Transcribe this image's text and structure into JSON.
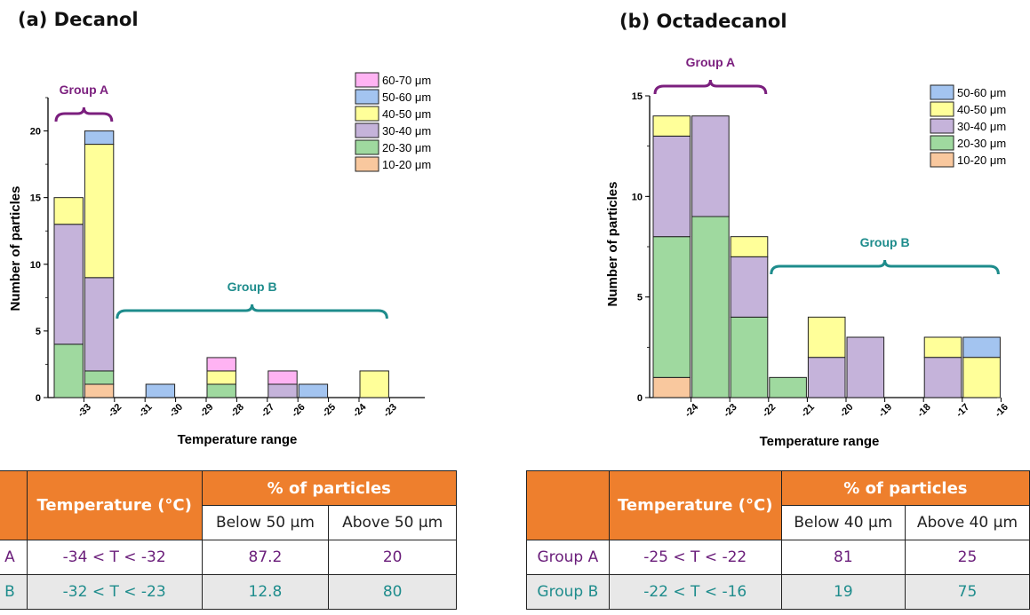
{
  "chart_data": [
    {
      "type": "bar",
      "stacked": true,
      "title": "(a) Decanol",
      "xlabel": "Temperature range",
      "ylabel": "Number of particles",
      "ylim": [
        0,
        22.5
      ],
      "yticks": [
        0,
        5,
        10,
        15,
        20
      ],
      "x_tick_labels": [
        "-33",
        "-32",
        "-31",
        "-30",
        "-29",
        "-28",
        "-27",
        "-26",
        "-25",
        "-24",
        "-23"
      ],
      "categories": [
        "-34 to -33",
        "-33 to -32",
        "-32 to -31",
        "-31 to -30",
        "-30 to -29",
        "-29 to -28",
        "-28 to -27",
        "-27 to -26",
        "-26 to -25",
        "-25 to -24",
        "-24 to -23"
      ],
      "series": [
        {
          "name": "10-20 μm",
          "color": "#f9c89e",
          "values": [
            0,
            1,
            0,
            0,
            0,
            0,
            0,
            0,
            0,
            0,
            0
          ]
        },
        {
          "name": "20-30 μm",
          "color": "#9fd99f",
          "values": [
            4,
            1,
            0,
            0,
            0,
            1,
            0,
            0,
            0,
            0,
            0
          ]
        },
        {
          "name": "30-40 μm",
          "color": "#c5b3da",
          "values": [
            9,
            7,
            0,
            0,
            0,
            0,
            0,
            1,
            0,
            0,
            0
          ]
        },
        {
          "name": "40-50 μm",
          "color": "#ffff99",
          "values": [
            2,
            10,
            0,
            0,
            0,
            1,
            0,
            0,
            0,
            0,
            2
          ]
        },
        {
          "name": "50-60 μm",
          "color": "#a3c4f0",
          "values": [
            0,
            1,
            0,
            1,
            0,
            0,
            0,
            0,
            1,
            0,
            0
          ]
        },
        {
          "name": "60-70 μm",
          "color": "#ffb3f3",
          "values": [
            0,
            0,
            0,
            0,
            0,
            1,
            0,
            1,
            0,
            0,
            0
          ]
        }
      ],
      "legend_position": "top-right",
      "annotations": [
        {
          "text": "Group A",
          "color": "#7b1f7e",
          "from_category": 0,
          "to_category": 1
        },
        {
          "text": "Group B",
          "color": "#1e8c8c",
          "from_category": 2,
          "to_category": 10
        }
      ]
    },
    {
      "type": "bar",
      "stacked": true,
      "title": "(b) Octadecanol",
      "xlabel": "Temperature range",
      "ylabel": "Number of particles",
      "ylim": [
        0,
        15
      ],
      "yticks": [
        0,
        5,
        10,
        15
      ],
      "x_tick_labels": [
        "-24",
        "-23",
        "-22",
        "-21",
        "-20",
        "-19",
        "-18",
        "-17",
        "-16"
      ],
      "categories": [
        "-25 to -24",
        "-24 to -23",
        "-23 to -22",
        "-22 to -21",
        "-21 to -20",
        "-20 to -19",
        "-19 to -18",
        "-18 to -17",
        "-17 to -16"
      ],
      "series": [
        {
          "name": "10-20 μm",
          "color": "#f9c89e",
          "values": [
            1,
            0,
            0,
            0,
            0,
            0,
            0,
            0,
            0
          ]
        },
        {
          "name": "20-30 μm",
          "color": "#9fd99f",
          "values": [
            7,
            9,
            4,
            1,
            0,
            0,
            0,
            0,
            0
          ]
        },
        {
          "name": "30-40 μm",
          "color": "#c5b3da",
          "values": [
            5,
            5,
            3,
            0,
            2,
            3,
            0,
            2,
            0
          ]
        },
        {
          "name": "40-50 μm",
          "color": "#ffff99",
          "values": [
            1,
            0,
            1,
            0,
            2,
            0,
            0,
            1,
            2
          ]
        },
        {
          "name": "50-60 μm",
          "color": "#a3c4f0",
          "values": [
            0,
            0,
            0,
            0,
            0,
            0,
            0,
            0,
            1
          ]
        }
      ],
      "legend_position": "top-right",
      "annotations": [
        {
          "text": "Group A",
          "color": "#7b1f7e",
          "from_category": 0,
          "to_category": 2
        },
        {
          "text": "Group B",
          "color": "#1e8c8c",
          "from_category": 3,
          "to_category": 8
        }
      ]
    }
  ],
  "tables": [
    {
      "header_temperature": "Temperature (°C)",
      "header_percent": "% of particles",
      "sub_below": "Below 50 μm",
      "sub_above": "Above 50 μm",
      "rows": [
        {
          "group": "Group A",
          "temperature": "-34 < T < -32",
          "below": "87.2",
          "above": "20"
        },
        {
          "group": "Group B",
          "temperature": "-32 < T < -23",
          "below": "12.8",
          "above": "80"
        }
      ]
    },
    {
      "header_temperature": "Temperature (°C)",
      "header_percent": "% of particles",
      "sub_below": "Below 40 μm",
      "sub_above": "Above 40 μm",
      "rows": [
        {
          "group": "Group A",
          "temperature": "-25 < T < -22",
          "below": "81",
          "above": "25"
        },
        {
          "group": "Group B",
          "temperature": "-22 < T < -16",
          "below": "19",
          "above": "75"
        }
      ]
    }
  ]
}
